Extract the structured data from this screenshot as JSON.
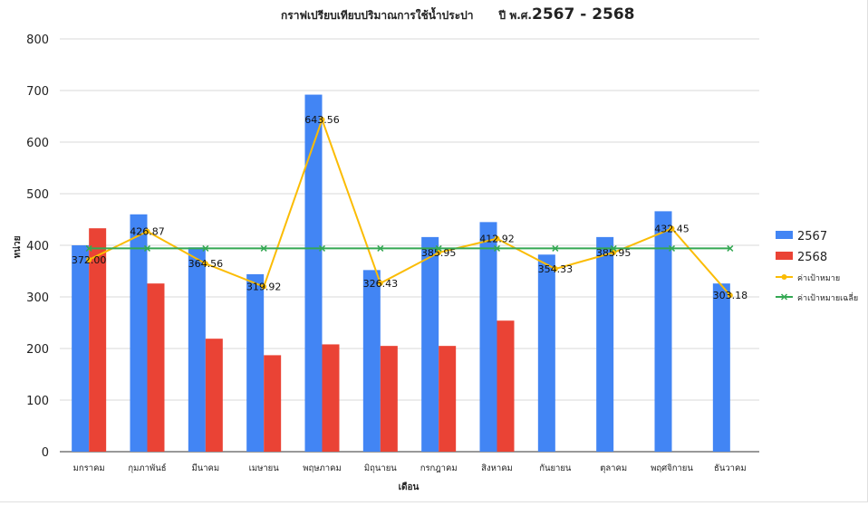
{
  "chart_data": {
    "type": "bar",
    "title": "กราฟเปรียบเทียบปริมาณการใช้น้ำประปา",
    "title_year_prefix": "ปี พ.ศ.",
    "title_year_range": "2567 - 2568",
    "xlabel": "เดือน",
    "ylabel": "หน่วย",
    "ylim": [
      0,
      800
    ],
    "yticks": [
      0,
      100,
      200,
      300,
      400,
      500,
      600,
      700,
      800
    ],
    "grid": true,
    "legend_position": "right",
    "categories": [
      "มกราคม",
      "กุมภาพันธ์",
      "มีนาคม",
      "เมษายน",
      "พฤษภาคม",
      "มิถุนายน",
      "กรกฎาคม",
      "สิงหาคม",
      "กันยายน",
      "ตุลาคม",
      "พฤศจิกายน",
      "ธันวาคม"
    ],
    "series": [
      {
        "name": "2567",
        "type": "bar",
        "color": "#4285f4",
        "values": [
          400,
          460,
          396,
          344,
          692,
          352,
          416,
          445,
          382,
          416,
          466,
          326
        ]
      },
      {
        "name": "2568",
        "type": "bar",
        "color": "#ea4335",
        "values": [
          433,
          326,
          219,
          187,
          208,
          205,
          205,
          254,
          null,
          null,
          null,
          null
        ]
      },
      {
        "name": "ค่าเป้าหมาย",
        "type": "line",
        "color": "#fbbc04",
        "marker": "circle",
        "values": [
          372.0,
          426.87,
          364.56,
          319.92,
          643.56,
          326.43,
          385.95,
          412.92,
          354.33,
          385.95,
          432.45,
          303.18
        ],
        "labels": [
          "372.00",
          "426.87",
          "364.56",
          "319.92",
          "643.56",
          "326.43",
          "385.95",
          "412.92",
          "354.33",
          "385.95",
          "432.45",
          "303.18"
        ]
      },
      {
        "name": "ค่าเป้าหมายเฉลี่ย",
        "type": "line",
        "color": "#34a853",
        "marker": "x",
        "values": [
          394,
          394,
          394,
          394,
          394,
          394,
          394,
          394,
          394,
          394,
          394,
          394
        ]
      }
    ]
  }
}
